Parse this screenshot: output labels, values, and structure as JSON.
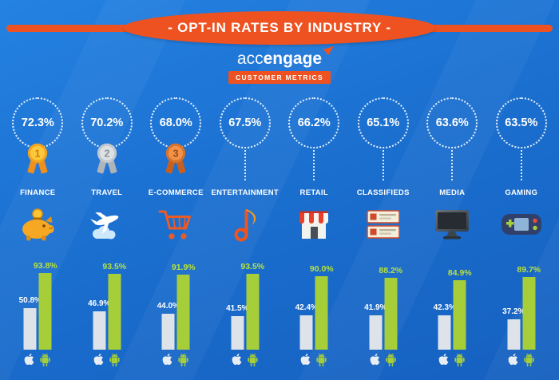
{
  "title": "- OPT-IN RATES BY INDUSTRY -",
  "logo": {
    "brand_light": "acc",
    "brand_bold": "engage",
    "subtitle": "CUSTOMER METRICS"
  },
  "colors": {
    "background_blue": "#1b70d0",
    "accent_orange": "#ee5220",
    "android_green": "#a6ce39",
    "ios_bar_gray": "#dde3e8",
    "gold_medal": "#f3a41c",
    "silver_medal": "#c2c8cd",
    "bronze_medal": "#da7128"
  },
  "chart_data": {
    "type": "bar",
    "title": "- OPT-IN RATES BY INDUSTRY -",
    "categories": [
      "FINANCE",
      "TRAVEL",
      "E-COMMERCE",
      "ENTERTAINMENT",
      "RETAIL",
      "CLASSIFIEDS",
      "MEDIA",
      "GAMING"
    ],
    "overall_opt_in_rate_percent": [
      72.3,
      70.2,
      68.0,
      67.5,
      66.2,
      65.1,
      63.6,
      63.5
    ],
    "series": [
      {
        "name": "iOS",
        "color": "#dde3e8",
        "values": [
          50.8,
          46.9,
          44.0,
          41.5,
          42.4,
          41.9,
          42.3,
          37.2
        ]
      },
      {
        "name": "Android",
        "color": "#a6ce39",
        "values": [
          93.8,
          93.5,
          91.9,
          93.5,
          90.0,
          88.2,
          84.9,
          89.7
        ]
      }
    ],
    "unit": "percent",
    "ylim": [
      0,
      100
    ],
    "legend_position": "platform-icons-below-bars"
  },
  "industries": [
    {
      "label": "FINANCE",
      "rate": "72.3%",
      "rank": "1",
      "ios": "50.8%",
      "android": "93.8%",
      "icon": "piggy-bank-icon"
    },
    {
      "label": "TRAVEL",
      "rate": "70.2%",
      "rank": "2",
      "ios": "46.9%",
      "android": "93.5%",
      "icon": "airplane-icon"
    },
    {
      "label": "E-COMMERCE",
      "rate": "68.0%",
      "rank": "3",
      "ios": "44.0%",
      "android": "91.9%",
      "icon": "shopping-cart-icon"
    },
    {
      "label": "ENTERTAINMENT",
      "rate": "67.5%",
      "ios": "41.5%",
      "android": "93.5%",
      "icon": "music-note-icon"
    },
    {
      "label": "RETAIL",
      "rate": "66.2%",
      "ios": "42.4%",
      "android": "90.0%",
      "icon": "storefront-icon"
    },
    {
      "label": "CLASSIFIEDS",
      "rate": "65.1%",
      "ios": "41.9%",
      "android": "88.2%",
      "icon": "classified-ads-icon"
    },
    {
      "label": "MEDIA",
      "rate": "63.6%",
      "ios": "42.3%",
      "android": "84.9%",
      "icon": "monitor-icon"
    },
    {
      "label": "GAMING",
      "rate": "63.5%",
      "ios": "37.2%",
      "android": "89.7%",
      "icon": "game-console-icon"
    }
  ],
  "platform_icons": [
    "apple-icon",
    "android-icon"
  ]
}
